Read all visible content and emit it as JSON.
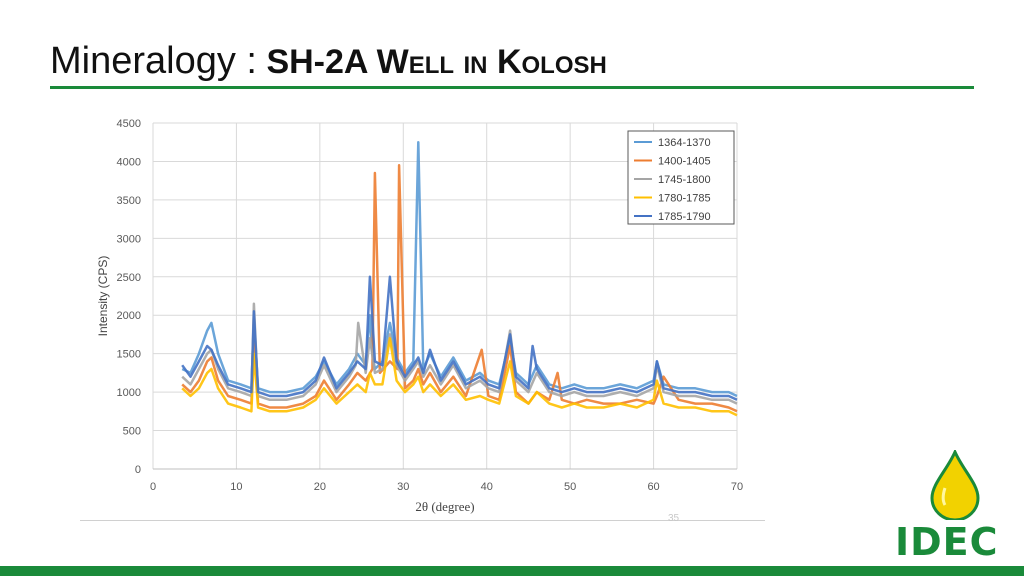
{
  "title": {
    "lead": "Mineralogy :",
    "subject": "SH-2A Well in Kolosh"
  },
  "page_number": "35",
  "logo": {
    "text": "IDEC",
    "colors": {
      "green": "#1a8a3a",
      "yellow": "#f2d200"
    }
  },
  "colors": {
    "accent": "#1a8a3a"
  },
  "chart_data": {
    "type": "line",
    "xlabel": "2θ (degree)",
    "ylabel": "Intensity (CPS)",
    "xlim": [
      0,
      70
    ],
    "ylim": [
      0,
      4500
    ],
    "xticks": [
      0,
      10,
      20,
      30,
      40,
      50,
      60,
      70
    ],
    "yticks": [
      0,
      500,
      1000,
      1500,
      2000,
      2500,
      3000,
      3500,
      4000,
      4500
    ],
    "grid": true,
    "legend_position": "top-right",
    "series": [
      {
        "name": "1364-1370",
        "color": "#5b9bd5",
        "x": [
          3.5,
          4.5,
          5.5,
          6.5,
          7,
          7.8,
          9,
          10.5,
          11.8,
          12.1,
          12.6,
          14,
          16,
          18,
          19.5,
          20.5,
          22,
          23.5,
          24.5,
          25.5,
          26.0,
          26.3,
          26.6,
          27.5,
          28.4,
          29.2,
          30.2,
          31.2,
          31.8,
          32.4,
          33.2,
          34.5,
          36,
          37.5,
          39.2,
          40.2,
          41.5,
          42.8,
          43.5,
          45,
          46,
          47.5,
          49,
          50.5,
          52,
          54,
          56,
          58,
          60,
          60.4,
          61.2,
          63,
          65,
          67,
          69,
          70
        ],
        "y": [
          1300,
          1250,
          1500,
          1800,
          1900,
          1500,
          1150,
          1100,
          1050,
          1950,
          1050,
          1000,
          1000,
          1050,
          1200,
          1400,
          1100,
          1300,
          1500,
          1350,
          2000,
          1500,
          1300,
          1400,
          1900,
          1450,
          1250,
          1400,
          4250,
          1300,
          1500,
          1200,
          1450,
          1150,
          1250,
          1150,
          1100,
          1700,
          1250,
          1100,
          1350,
          1100,
          1050,
          1100,
          1050,
          1050,
          1100,
          1050,
          1150,
          1400,
          1100,
          1050,
          1050,
          1000,
          1000,
          950
        ]
      },
      {
        "name": "1400-1405",
        "color": "#ed7d31",
        "x": [
          3.5,
          4.5,
          5.5,
          6.5,
          7,
          7.8,
          9,
          10.5,
          11.8,
          12.1,
          12.6,
          14,
          16,
          18,
          19.5,
          20.5,
          22,
          23.5,
          24.5,
          25.5,
          26.3,
          26.6,
          27.2,
          28.4,
          29.3,
          29.5,
          30.2,
          31.2,
          31.8,
          32.4,
          33.2,
          34.5,
          36,
          37.5,
          39.4,
          40.2,
          41.5,
          42.8,
          43.5,
          45,
          46,
          47.5,
          48.5,
          49,
          50.5,
          52,
          54,
          56,
          58,
          60,
          60.4,
          61.2,
          63,
          65,
          67,
          69,
          70
        ],
        "y": [
          1100,
          1000,
          1150,
          1400,
          1450,
          1150,
          950,
          900,
          850,
          1700,
          850,
          800,
          800,
          850,
          950,
          1150,
          900,
          1100,
          1250,
          1150,
          1300,
          3850,
          1250,
          1400,
          1300,
          3950,
          1050,
          1150,
          1300,
          1100,
          1250,
          1000,
          1200,
          950,
          1550,
          950,
          900,
          1600,
          1000,
          850,
          1000,
          900,
          1250,
          900,
          850,
          900,
          850,
          850,
          900,
          850,
          950,
          1200,
          900,
          850,
          850,
          800,
          750
        ]
      },
      {
        "name": "1745-1800",
        "color": "#a5a5a5",
        "x": [
          3.5,
          4.5,
          5.5,
          6.5,
          7,
          7.8,
          9,
          10.5,
          11.8,
          12.1,
          12.6,
          14,
          16,
          18,
          19.5,
          20.5,
          22,
          23.5,
          24.3,
          24.6,
          25.5,
          26.0,
          26.6,
          27.5,
          28.4,
          29.2,
          30.2,
          31.2,
          31.8,
          32.4,
          33.2,
          34.5,
          36,
          37.5,
          39.2,
          40.2,
          41.5,
          42.8,
          43.5,
          45,
          46,
          47.5,
          49,
          50.5,
          52,
          54,
          56,
          58,
          60,
          60.4,
          61.2,
          63,
          65,
          67,
          69,
          70
        ],
        "y": [
          1200,
          1100,
          1300,
          1500,
          1550,
          1300,
          1050,
          1000,
          950,
          2150,
          950,
          900,
          900,
          950,
          1100,
          1350,
          1000,
          1200,
          1350,
          1900,
          1250,
          1700,
          1250,
          1300,
          1750,
          1350,
          1150,
          1300,
          1400,
          1200,
          1350,
          1100,
          1350,
          1050,
          1150,
          1050,
          1000,
          1800,
          1150,
          1000,
          1250,
          1000,
          950,
          1000,
          950,
          950,
          1000,
          950,
          1050,
          1350,
          1000,
          950,
          950,
          900,
          900,
          850
        ]
      },
      {
        "name": "1780-1785",
        "color": "#ffc000",
        "x": [
          3.5,
          4.5,
          5.5,
          6.5,
          7,
          7.8,
          9,
          10.5,
          11.8,
          12.1,
          12.6,
          14,
          16,
          18,
          19.5,
          20.5,
          22,
          23.5,
          24.5,
          25.5,
          26.0,
          26.6,
          27.5,
          28.4,
          29.2,
          30.2,
          31.2,
          31.8,
          32.4,
          33.2,
          34.5,
          36,
          37.5,
          39.2,
          40.2,
          41.5,
          42.8,
          43.5,
          45,
          46,
          47.5,
          49,
          50.5,
          52,
          54,
          56,
          58,
          60,
          60.4,
          61.2,
          63,
          65,
          67,
          69,
          70
        ],
        "y": [
          1050,
          950,
          1050,
          1250,
          1300,
          1050,
          850,
          800,
          750,
          1500,
          800,
          750,
          750,
          800,
          900,
          1050,
          850,
          1000,
          1100,
          1000,
          1250,
          1100,
          1100,
          1700,
          1150,
          1000,
          1100,
          1200,
          1000,
          1100,
          950,
          1100,
          900,
          950,
          900,
          850,
          1400,
          950,
          850,
          1000,
          850,
          800,
          850,
          800,
          800,
          850,
          800,
          900,
          1150,
          850,
          800,
          800,
          750,
          750,
          700
        ]
      },
      {
        "name": "1785-1790",
        "color": "#4472c4",
        "x": [
          3.5,
          4.5,
          5.5,
          6.5,
          7,
          7.8,
          9,
          10.5,
          11.8,
          12.1,
          12.6,
          14,
          16,
          18,
          19.5,
          20.5,
          22,
          23.5,
          24.5,
          25.5,
          26.0,
          26.6,
          27.5,
          28.4,
          29.2,
          30.2,
          31.2,
          31.8,
          32.4,
          33.2,
          34.5,
          36,
          37.5,
          39.2,
          40.2,
          41.5,
          42.8,
          43.5,
          45,
          45.5,
          46,
          47.5,
          49,
          50.5,
          52,
          54,
          56,
          58,
          60,
          60.4,
          61.2,
          63,
          65,
          67,
          69,
          70
        ],
        "y": [
          1350,
          1200,
          1400,
          1600,
          1550,
          1350,
          1100,
          1050,
          1000,
          2050,
          1000,
          950,
          950,
          1000,
          1150,
          1450,
          1050,
          1250,
          1400,
          1300,
          2500,
          1400,
          1350,
          2500,
          1400,
          1200,
          1350,
          1450,
          1250,
          1550,
          1150,
          1400,
          1100,
          1200,
          1100,
          1050,
          1750,
          1200,
          1050,
          1600,
          1300,
          1050,
          1000,
          1050,
          1000,
          1000,
          1050,
          1000,
          1100,
          1400,
          1050,
          1000,
          1000,
          950,
          950,
          900
        ]
      }
    ]
  }
}
